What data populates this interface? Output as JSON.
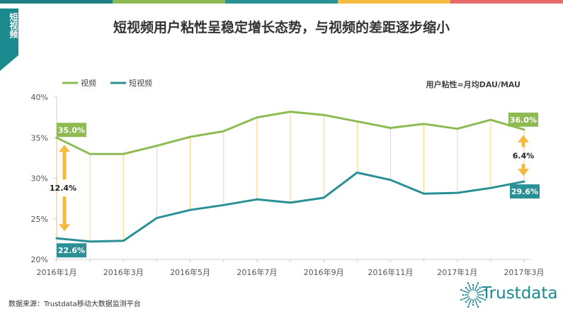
{
  "title": "短视频用户粘性呈稳定增长态势，与视频的差距逐步缩小",
  "side_tag": "短视频",
  "note": "用户粘性=月均DAU/MAU",
  "source": "数据来源：Trustdata移动大数据监测平台",
  "logo_text": "Trustdata",
  "colors": {
    "video": "#8dbb52",
    "short_video": "#2a9095",
    "arrow": "#f5b93e",
    "top_bar": [
      "#1b7f85",
      "#8dbb52",
      "#2a9095",
      "#f5b93e",
      "#e46a6a"
    ]
  },
  "annotations": {
    "start_video_label": "35.0%",
    "start_short_label": "22.6%",
    "end_video_label": "36.0%",
    "end_short_label": "29.6%",
    "start_gap": "12.4%",
    "end_gap": "6.4%"
  },
  "chart_data": {
    "type": "line",
    "title": "短视频用户粘性呈稳定增长态势，与视频的差距逐步缩小",
    "x": [
      "2016年1月",
      "2016年2月",
      "2016年3月",
      "2016年4月",
      "2016年5月",
      "2016年6月",
      "2016年7月",
      "2016年8月",
      "2016年9月",
      "2016年10月",
      "2016年11月",
      "2016年12月",
      "2017年1月",
      "2017年2月",
      "2017年3月"
    ],
    "x_tick_labels": [
      "2016年1月",
      "2016年3月",
      "2016年5月",
      "2016年7月",
      "2016年9月",
      "2016年11月",
      "2017年1月",
      "2017年3月"
    ],
    "y_tick_labels": [
      "20%",
      "25%",
      "30%",
      "35%",
      "40%"
    ],
    "ylim": [
      20,
      40
    ],
    "y_unit": "%",
    "series": [
      {
        "name": "视频",
        "values": [
          35.0,
          33.0,
          33.0,
          34.0,
          35.1,
          35.8,
          37.5,
          38.2,
          37.8,
          37.0,
          36.2,
          36.7,
          36.1,
          37.2,
          36.0
        ]
      },
      {
        "name": "短视频",
        "values": [
          22.6,
          22.2,
          22.3,
          25.1,
          26.1,
          26.7,
          27.4,
          27.0,
          27.6,
          30.7,
          29.8,
          28.1,
          28.2,
          28.8,
          29.6
        ]
      }
    ],
    "legend": "top-left",
    "grid": false
  }
}
